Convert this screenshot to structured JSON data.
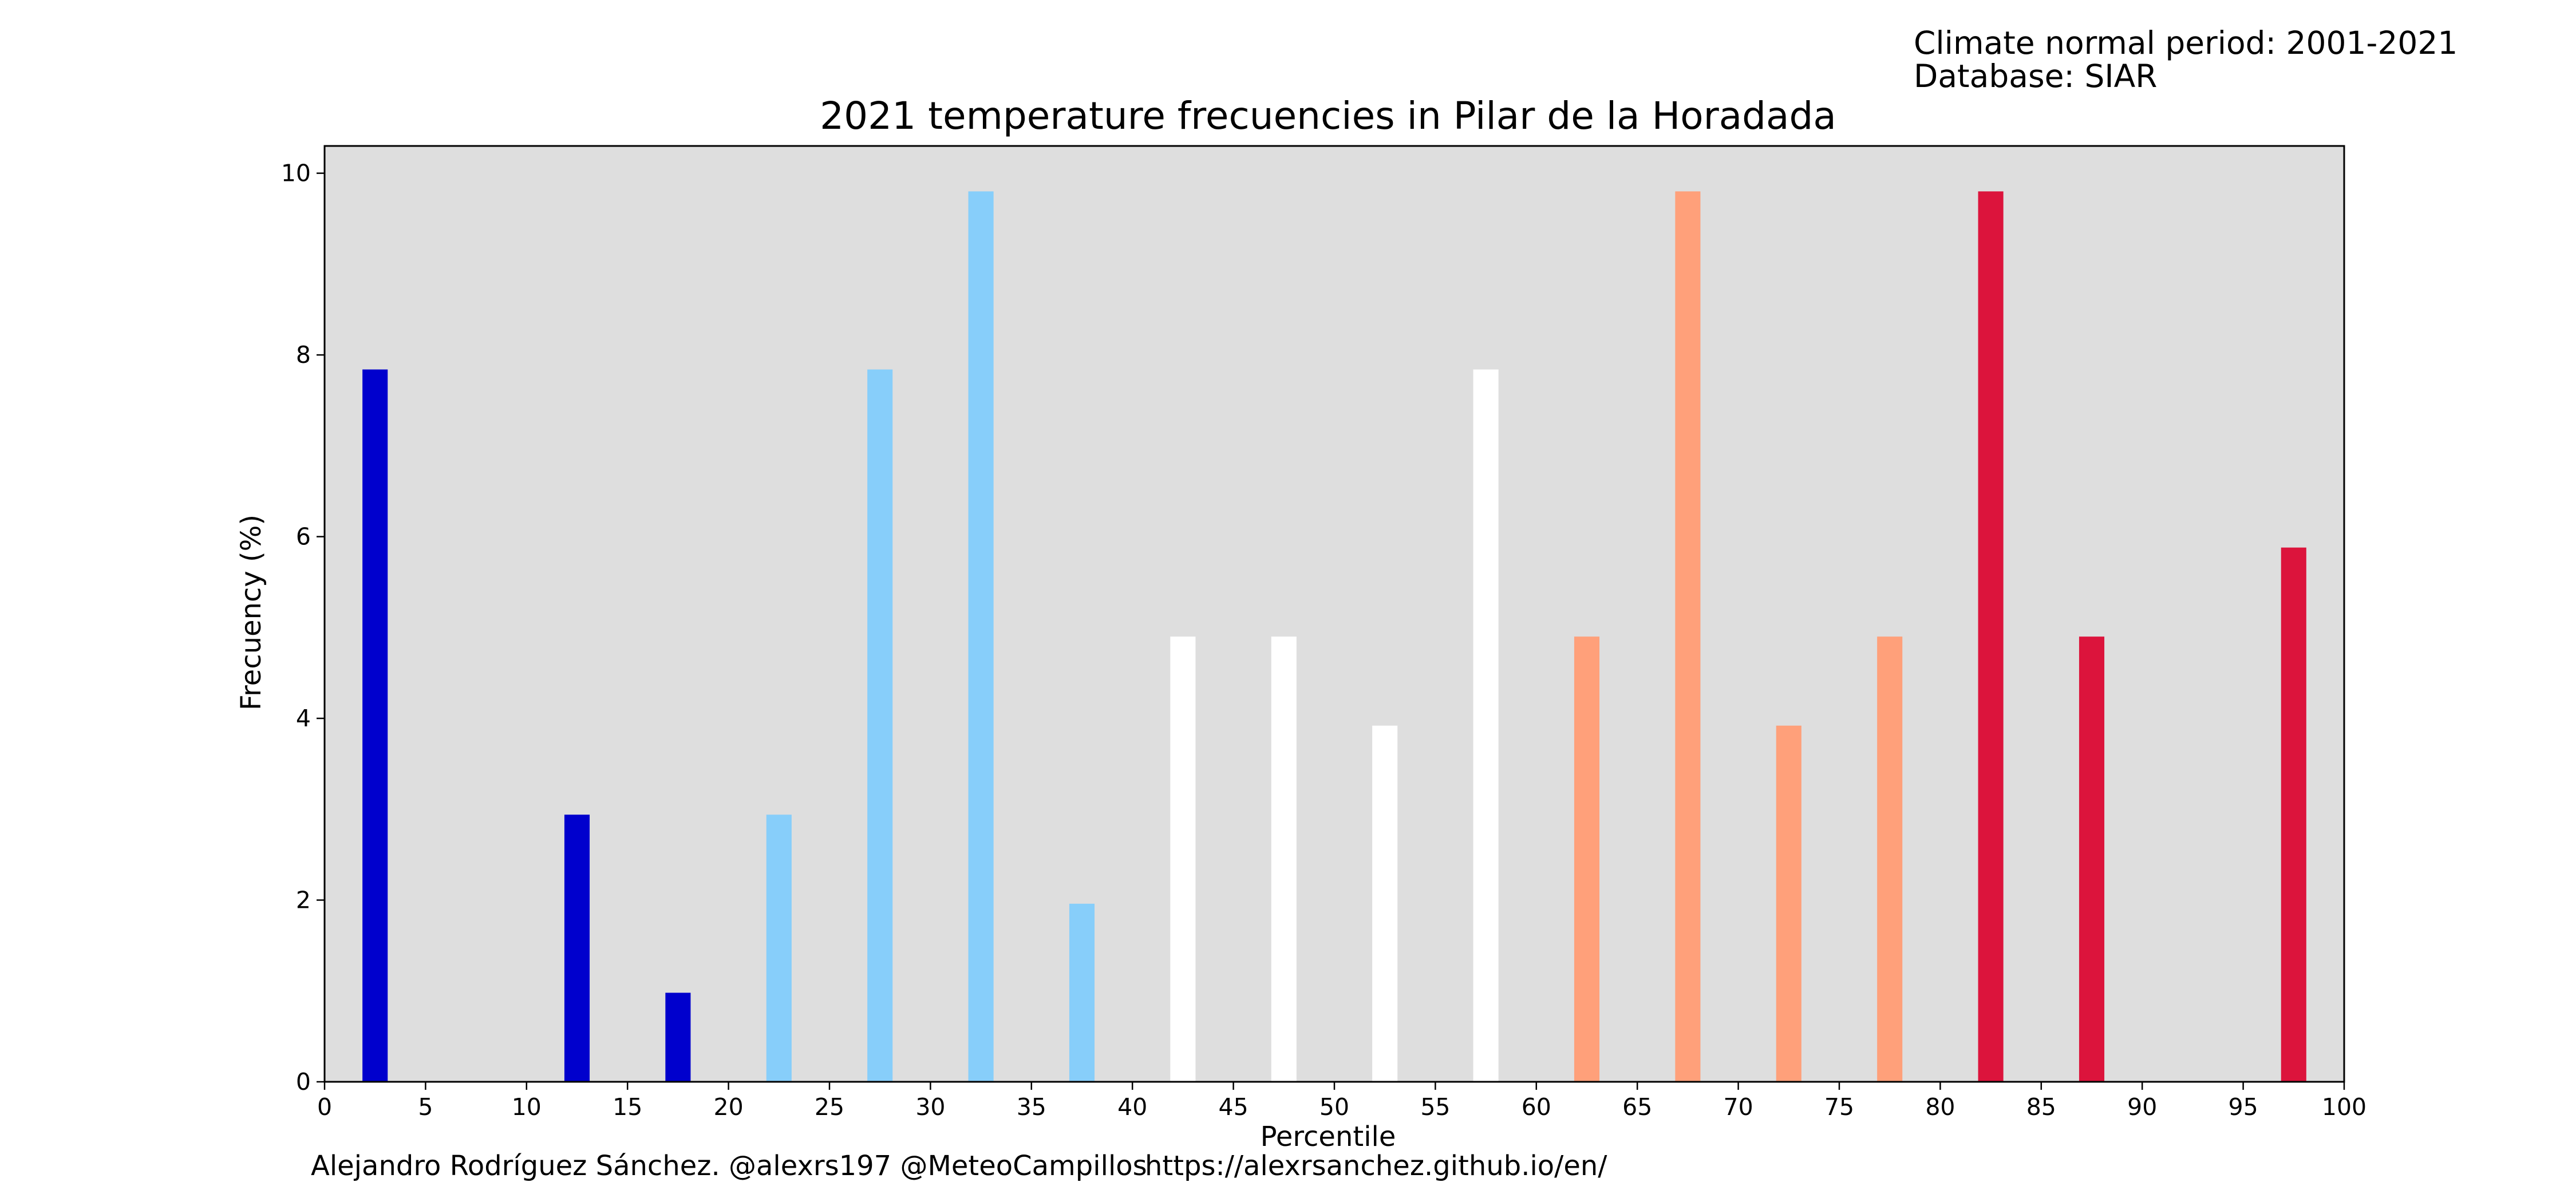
{
  "header": {
    "climate_period": "Climate normal period: 2001-2021",
    "database": "Database: SIAR"
  },
  "footer": {
    "credit": "Alejandro Rodríguez Sánchez. @alexrs197 @MeteoCampillos",
    "url": "https://alexrsanchez.github.io/en/"
  },
  "colors": {
    "plot_background": "#dedede",
    "very_cold": "#0000cd",
    "cold": "#87cefa",
    "normal": "#ffffff",
    "warm": "#ffa07a",
    "very_warm": "#dc143c"
  },
  "chart_data": {
    "type": "bar",
    "title": "2021 temperature frecuencies in Pilar de la Horadada",
    "xlabel": "Percentile",
    "ylabel": "Frecuency (%)",
    "xlim": [
      0,
      100
    ],
    "ylim": [
      0,
      10.3
    ],
    "xticks": [
      0,
      5,
      10,
      15,
      20,
      25,
      30,
      35,
      40,
      45,
      50,
      55,
      60,
      65,
      70,
      75,
      80,
      85,
      90,
      95,
      100
    ],
    "yticks": [
      0,
      2,
      4,
      6,
      8,
      10
    ],
    "grid": false,
    "bar_width": 1.25,
    "bars": [
      {
        "x": 2.5,
        "value": 7.84,
        "color": "#0000cd"
      },
      {
        "x": 12.5,
        "value": 2.94,
        "color": "#0000cd"
      },
      {
        "x": 17.5,
        "value": 0.98,
        "color": "#0000cd"
      },
      {
        "x": 22.5,
        "value": 2.94,
        "color": "#87cefa"
      },
      {
        "x": 27.5,
        "value": 7.84,
        "color": "#87cefa"
      },
      {
        "x": 32.5,
        "value": 9.8,
        "color": "#87cefa"
      },
      {
        "x": 37.5,
        "value": 1.96,
        "color": "#87cefa"
      },
      {
        "x": 42.5,
        "value": 4.9,
        "color": "#ffffff"
      },
      {
        "x": 47.5,
        "value": 4.9,
        "color": "#ffffff"
      },
      {
        "x": 52.5,
        "value": 3.92,
        "color": "#ffffff"
      },
      {
        "x": 57.5,
        "value": 7.84,
        "color": "#ffffff"
      },
      {
        "x": 62.5,
        "value": 4.9,
        "color": "#ffa07a"
      },
      {
        "x": 67.5,
        "value": 9.8,
        "color": "#ffa07a"
      },
      {
        "x": 72.5,
        "value": 3.92,
        "color": "#ffa07a"
      },
      {
        "x": 77.5,
        "value": 4.9,
        "color": "#ffa07a"
      },
      {
        "x": 82.5,
        "value": 9.8,
        "color": "#dc143c"
      },
      {
        "x": 87.5,
        "value": 4.9,
        "color": "#dc143c"
      },
      {
        "x": 97.5,
        "value": 5.88,
        "color": "#dc143c"
      }
    ]
  }
}
